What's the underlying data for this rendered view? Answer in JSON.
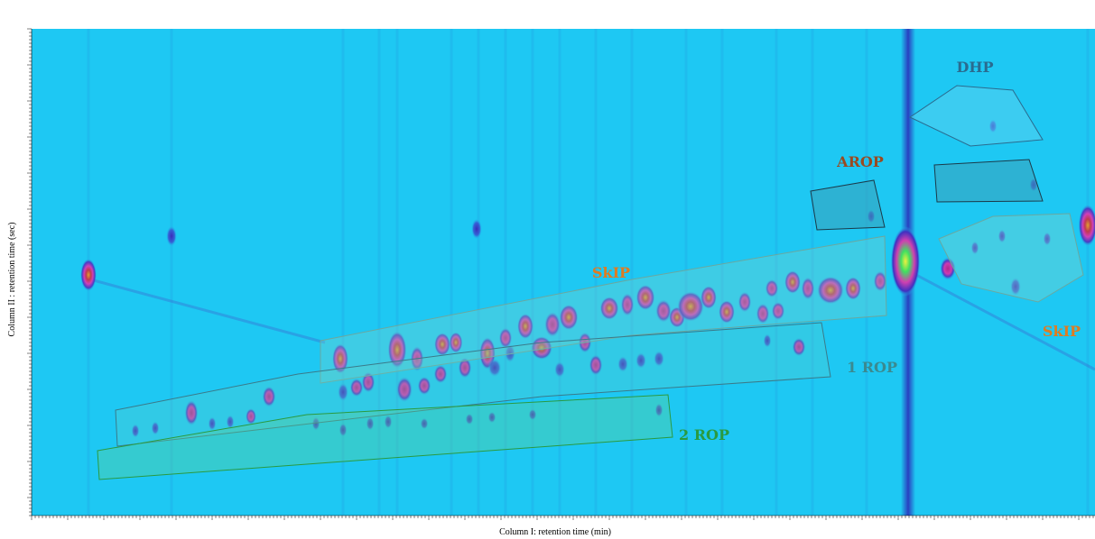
{
  "x_axis_label": "Column I: retention time (min)",
  "y_axis_label": "Column II : retention time (sec)",
  "regions": [
    {
      "label": "DHP"
    },
    {
      "label": "AROP"
    },
    {
      "label": "SkIP"
    },
    {
      "label": "SkIP"
    },
    {
      "label": "1 ROP"
    },
    {
      "label": "2 ROP"
    }
  ]
}
